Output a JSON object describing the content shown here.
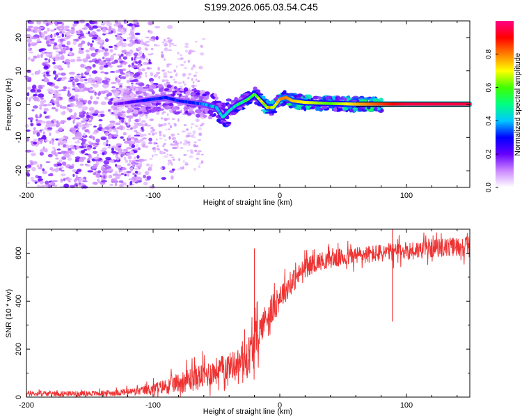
{
  "title": "S199.2026.065.03.54.C45",
  "chart_data": [
    {
      "type": "heatmap",
      "title": "S199.2026.065.03.54.C45",
      "xlabel": "Height of straight line (km)",
      "ylabel": "Frequency (Hz)",
      "xlim": [
        -200,
        150
      ],
      "ylim": [
        -25,
        25
      ],
      "xticks": [
        -200,
        -100,
        0,
        100
      ],
      "yticks": [
        -20,
        -10,
        0,
        10,
        20
      ],
      "ridge": {
        "x": [
          -130,
          -120,
          -110,
          -100,
          -90,
          -80,
          -70,
          -60,
          -50,
          -45,
          -40,
          -35,
          -30,
          -25,
          -20,
          -15,
          -10,
          -5,
          0,
          5,
          10,
          20,
          40,
          60,
          80,
          100,
          150
        ],
        "y": [
          0,
          0.5,
          1,
          1.5,
          2,
          1,
          0.5,
          0,
          -1,
          -4,
          -2,
          -0.5,
          0.5,
          1.5,
          3,
          1,
          -1,
          -1,
          1.5,
          2,
          1,
          0.5,
          0.2,
          0,
          0,
          0,
          0
        ],
        "amplitude": [
          0.15,
          0.2,
          0.25,
          0.3,
          0.3,
          0.3,
          0.3,
          0.35,
          0.4,
          0.45,
          0.45,
          0.45,
          0.5,
          0.55,
          0.6,
          0.65,
          0.7,
          0.75,
          0.8,
          0.8,
          0.75,
          0.7,
          0.6,
          0.75,
          0.85,
          0.95,
          0.95
        ]
      },
      "colorbar": {
        "label": "Normalized spectral amplitude",
        "ticks": [
          "0.0",
          "0.2",
          "0.4",
          "0.6",
          "0.8"
        ],
        "colors": [
          "#ffffff",
          "#cc88ff",
          "#6600ff",
          "#0000ff",
          "#00c8ff",
          "#00ff80",
          "#40ff00",
          "#ffff00",
          "#ff8000",
          "#ff0000",
          "#ff0088"
        ]
      }
    },
    {
      "type": "line",
      "xlabel": "Height of straight line (km)",
      "ylabel": "SNR (10 * v/v)",
      "xlim": [
        -200,
        150
      ],
      "ylim": [
        0,
        700
      ],
      "xticks": [
        -200,
        -100,
        0,
        100
      ],
      "yticks": [
        0,
        200,
        400,
        600
      ],
      "color": "#ee3333",
      "envelope": {
        "x": [
          -200,
          -150,
          -130,
          -110,
          -100,
          -90,
          -80,
          -70,
          -60,
          -50,
          -40,
          -30,
          -25,
          -20,
          -15,
          -10,
          -5,
          0,
          10,
          20,
          30,
          40,
          60,
          80,
          100,
          120,
          150
        ],
        "mean": [
          15,
          15,
          18,
          25,
          35,
          45,
          60,
          75,
          90,
          110,
          130,
          150,
          170,
          220,
          290,
          340,
          370,
          420,
          480,
          540,
          565,
          575,
          590,
          600,
          610,
          620,
          630
        ],
        "spread": [
          15,
          15,
          18,
          25,
          35,
          45,
          60,
          75,
          80,
          80,
          80,
          90,
          120,
          140,
          90,
          90,
          90,
          80,
          70,
          60,
          55,
          55,
          55,
          55,
          55,
          55,
          60
        ]
      },
      "spikes": [
        {
          "x": -20,
          "y": 620
        },
        {
          "x": 89,
          "y": 700
        }
      ]
    }
  ]
}
